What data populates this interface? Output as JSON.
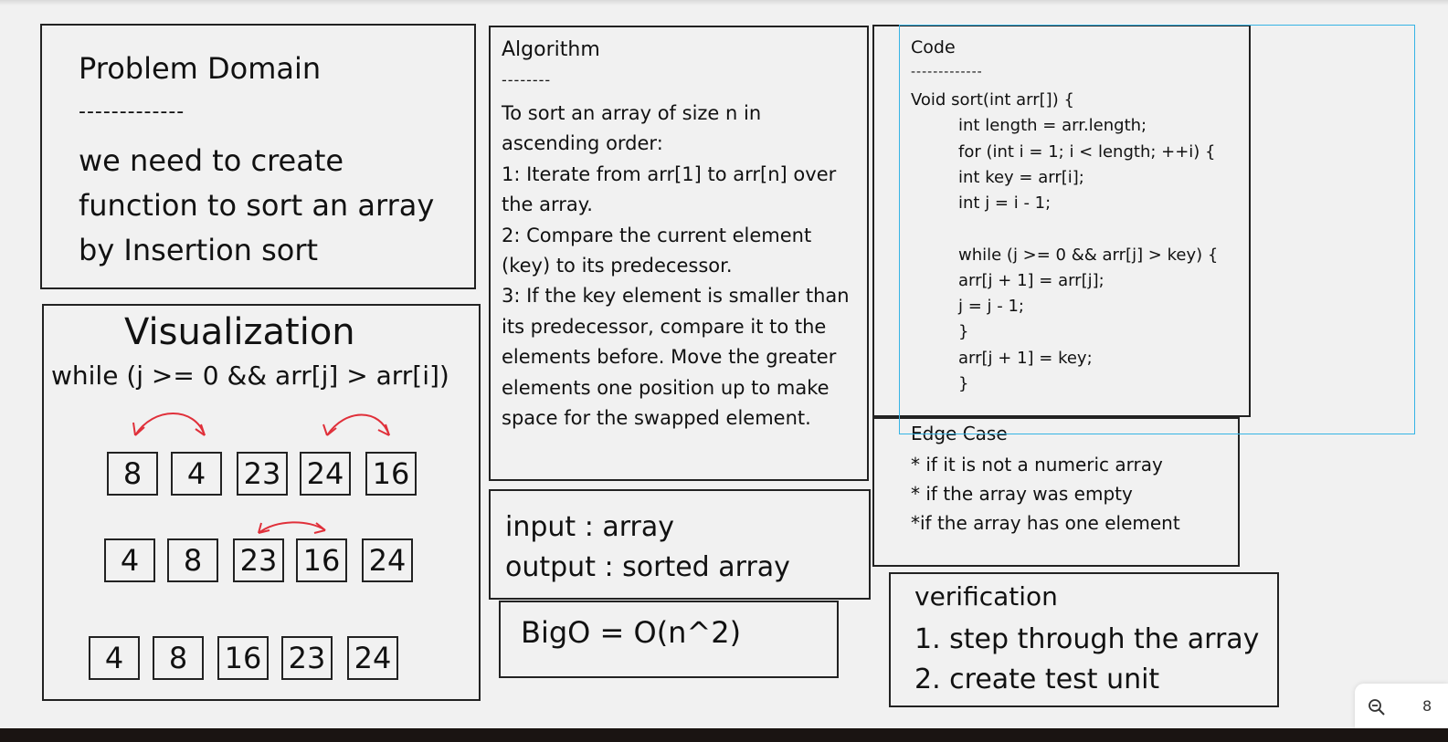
{
  "problem": {
    "title": "Problem Domain",
    "dash": "-------------",
    "body": "we need to create\nfunction to sort an array\nby Insertion sort"
  },
  "visualization": {
    "title": "Visualization",
    "condition": "while (j >= 0 && arr[j] > arr[i])",
    "rows": [
      [
        "8",
        "4",
        "23",
        "24",
        "16"
      ],
      [
        "4",
        "8",
        "23",
        "16",
        "24"
      ],
      [
        "4",
        "8",
        "16",
        "23",
        "24"
      ]
    ],
    "arrow_color": "#e0303a"
  },
  "algorithm": {
    "title": "Algorithm",
    "dash": "--------",
    "body": "To sort an array of size n in ascending order:\n1: Iterate from arr[1] to arr[n] over the array.\n2: Compare the current element (key) to its predecessor.\n3: If the key element is smaller than its predecessor, compare it to the elements before. Move the greater elements one position up to make space for the swapped element."
  },
  "io": {
    "body": "input : array\noutput : sorted array"
  },
  "bigo": {
    "body": "BigO = O(n^2)"
  },
  "code": {
    "title": "Code",
    "dash": "-------------",
    "lines": [
      "Void sort(int arr[]) {",
      "int length = arr.length;",
      "for (int i = 1; i < length; ++i) {",
      "int key = arr[i];",
      "int j = i - 1;",
      "",
      "while (j >= 0 && arr[j] > key) {",
      "arr[j + 1] = arr[j];",
      "j = j - 1;",
      "}",
      "arr[j + 1] = key;",
      "}"
    ]
  },
  "edge": {
    "title": "Edge Case",
    "body": "* if it is not a numeric array\n* if the array was empty\n*if the array has one element"
  },
  "verification": {
    "title": "verification",
    "body": "1. step through the array\n2. create test unit"
  },
  "toolbar": {
    "zoom_icon": "zoom-out-icon",
    "zoom_value": "8"
  },
  "colors": {
    "selection": "#36b4e5",
    "background": "#f1f1f1"
  }
}
